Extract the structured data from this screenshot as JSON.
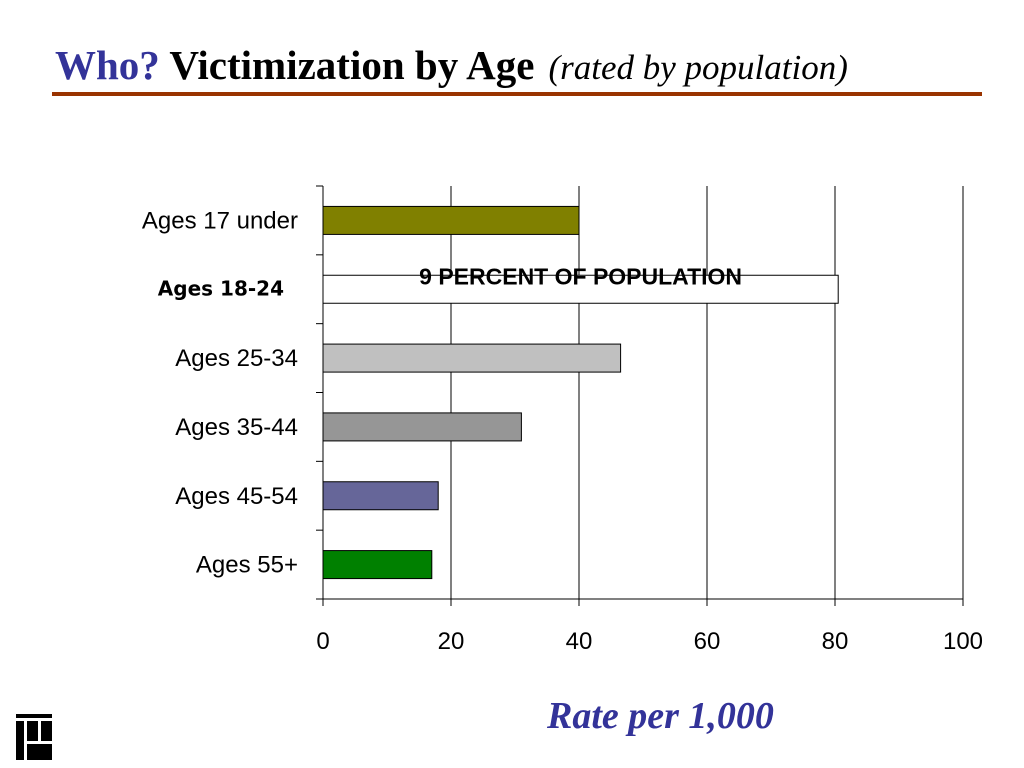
{
  "slide": {
    "title_accent": "Who?",
    "title_main": "Victimization by Age",
    "title_sub": "(rated by population)"
  },
  "colors": {
    "title_accent": "#333399",
    "rule": "#993300",
    "axis_title": "#333399"
  },
  "icons": {
    "logo": "corner-logo-icon"
  },
  "chart_data": {
    "type": "bar",
    "orientation": "horizontal",
    "categories": [
      "Ages 17 under",
      "Ages 18-24",
      "Ages 25-34",
      "Ages 35-44",
      "Ages 45-54",
      "Ages 55+"
    ],
    "values": [
      40,
      80.5,
      46.5,
      31,
      18,
      17
    ],
    "bar_colors": [
      "#808000",
      "#ffffff",
      "#c0c0c0",
      "#969696",
      "#666699",
      "#008000"
    ],
    "bar_annotation": {
      "category": "Ages 18-24",
      "text": "9 PERCENT OF POPULATION"
    },
    "emphasized_category": "Ages 18-24",
    "xlim": [
      0,
      100
    ],
    "xticks": [
      0,
      20,
      40,
      60,
      80,
      100
    ],
    "xlabel": "Rate per 1,000",
    "ylabel": "",
    "grid": "vertical",
    "legend": "none"
  }
}
